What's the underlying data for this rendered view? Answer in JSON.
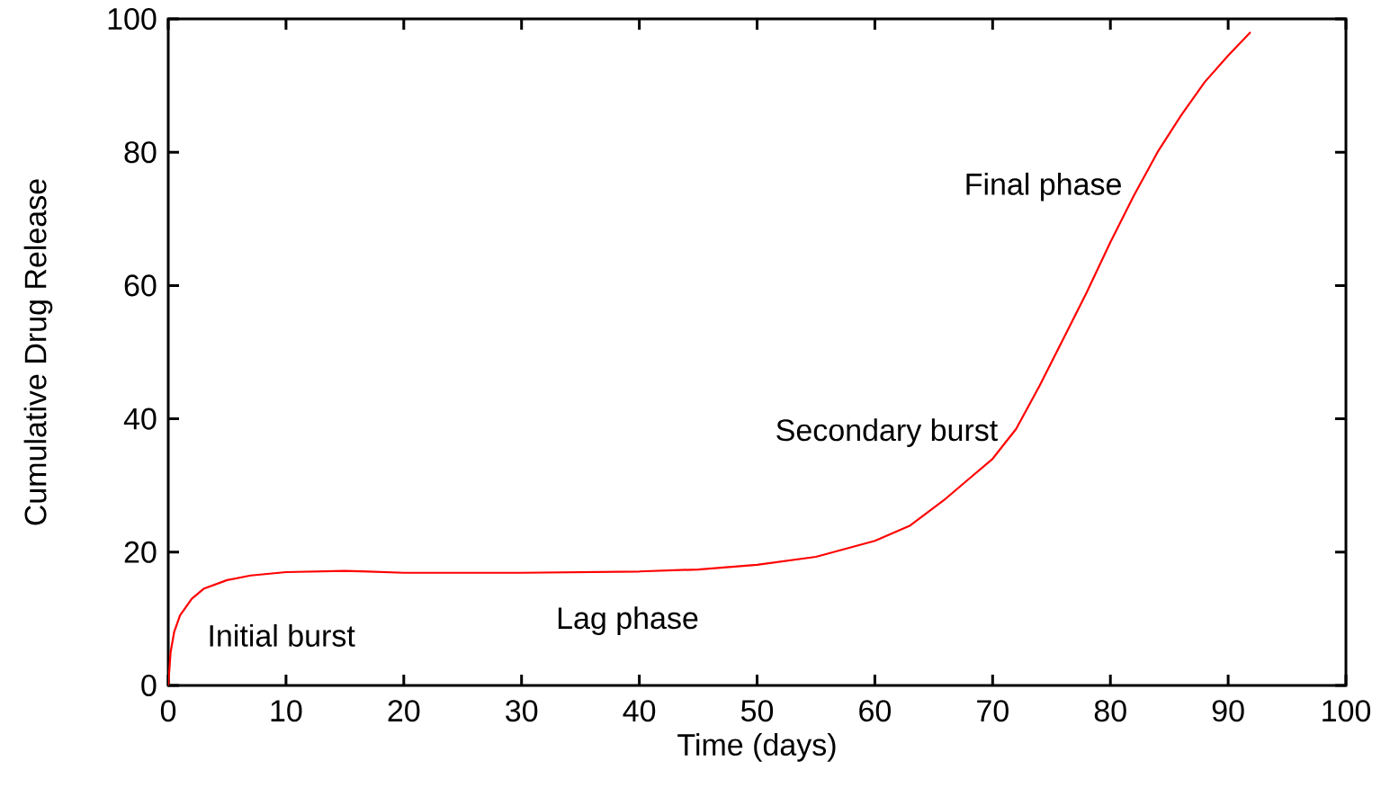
{
  "chart_data": {
    "type": "line",
    "xlabel": "Time (days)",
    "ylabel": "Cumulative Drug Release",
    "x": [
      0,
      0.2,
      0.5,
      1,
      2,
      3,
      5,
      7,
      10,
      15,
      17,
      20,
      30,
      40,
      45,
      50,
      55,
      60,
      63,
      66,
      68,
      70,
      72,
      74,
      76,
      78,
      80,
      82,
      84,
      86,
      88,
      90,
      91.9
    ],
    "series": [
      {
        "color": "#ff0000",
        "values": [
          0,
          5,
          8,
          10.5,
          13,
          14.5,
          15.8,
          16.5,
          17,
          17.2,
          17.1,
          16.9,
          16.9,
          17.1,
          17.4,
          18.1,
          19.3,
          21.7,
          24,
          28,
          31,
          34,
          38.5,
          45,
          52,
          59,
          66.5,
          73.5,
          80,
          85.5,
          90.5,
          94.5,
          98
        ]
      }
    ],
    "xlim": [
      0,
      100
    ],
    "ylim": [
      0,
      100
    ],
    "xticks": [
      0,
      10,
      20,
      30,
      40,
      50,
      60,
      70,
      80,
      90,
      100
    ],
    "yticks": [
      0,
      20,
      40,
      60,
      80,
      100
    ],
    "grid": false,
    "marker": "none",
    "line_style": "solid",
    "annotations": [
      "Initial burst",
      "Lag phase",
      "Secondary burst",
      "Final phase"
    ]
  }
}
